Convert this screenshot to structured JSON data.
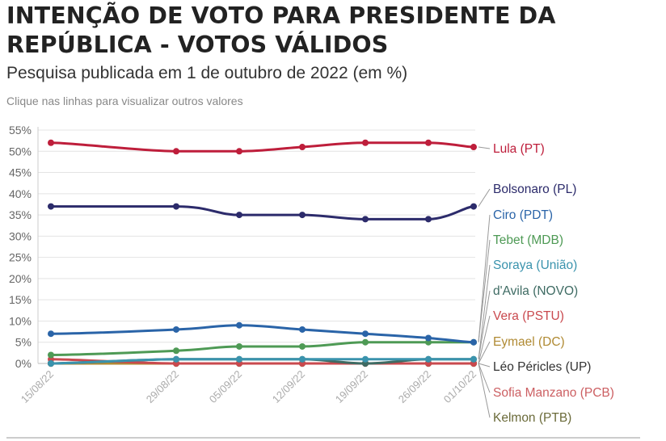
{
  "title": "INTENÇÃO DE VOTO PARA PRESIDENTE DA REPÚBLICA - VOTOS VÁLIDOS",
  "subtitle": "Pesquisa publicada em 1 de outubro de 2022 (em %)",
  "hint": "Clique nas linhas para visualizar outros valores",
  "chart_data": {
    "type": "line",
    "title": "INTENÇÃO DE VOTO PARA PRESIDENTE DA REPÚBLICA - VOTOS VÁLIDOS",
    "subtitle": "Pesquisa publicada em 1 de outubro de 2022 (em %)",
    "xlabel": "",
    "ylabel": "",
    "ylim": [
      0,
      55
    ],
    "yticks": [
      "0%",
      "5%",
      "10%",
      "15%",
      "20%",
      "25%",
      "30%",
      "35%",
      "40%",
      "45%",
      "50%",
      "55%"
    ],
    "categories": [
      "15/08/22",
      "29/08/22",
      "05/09/22",
      "12/09/22",
      "19/09/22",
      "26/09/22",
      "01/10/22"
    ],
    "legend_position": "right",
    "series": [
      {
        "name": "Lula (PT)",
        "color": "#be1e3b",
        "values": [
          52,
          50,
          50,
          51,
          52,
          52,
          51
        ]
      },
      {
        "name": "Bolsonaro (PL)",
        "color": "#2c2b6b",
        "values": [
          37,
          37,
          35,
          35,
          34,
          34,
          37
        ]
      },
      {
        "name": "Ciro (PDT)",
        "color": "#2a64a8",
        "values": [
          7,
          8,
          9,
          8,
          7,
          6,
          5
        ]
      },
      {
        "name": "Tebet (MDB)",
        "color": "#4e9a55",
        "values": [
          2,
          3,
          4,
          4,
          5,
          5,
          5
        ]
      },
      {
        "name": "Soraya (União)",
        "color": "#3a93ad",
        "values": [
          0,
          1,
          1,
          1,
          1,
          1,
          1
        ]
      },
      {
        "name": "d'Avila (NOVO)",
        "color": "#3e6b63",
        "values": [
          0,
          1,
          1,
          1,
          0,
          1,
          1
        ]
      },
      {
        "name": "Vera (PSTU)",
        "color": "#c9494e",
        "values": [
          1,
          0,
          0,
          0,
          0,
          0,
          0
        ]
      },
      {
        "name": "Eymael (DC)",
        "color": "#b08a33",
        "values": [
          0,
          0,
          0,
          0,
          0,
          0,
          0
        ]
      },
      {
        "name": "Léo Péricles (UP)",
        "color": "#333333",
        "values": [
          0,
          0,
          0,
          0,
          0,
          0,
          0
        ]
      },
      {
        "name": "Sofia Manzano (PCB)",
        "color": "#cc5f62",
        "values": [
          0,
          0,
          0,
          0,
          0,
          0,
          0
        ]
      },
      {
        "name": "Kelmon (PTB)",
        "color": "#6b6b3a",
        "values": [
          0,
          0,
          0,
          0,
          0,
          0,
          0
        ]
      }
    ]
  }
}
